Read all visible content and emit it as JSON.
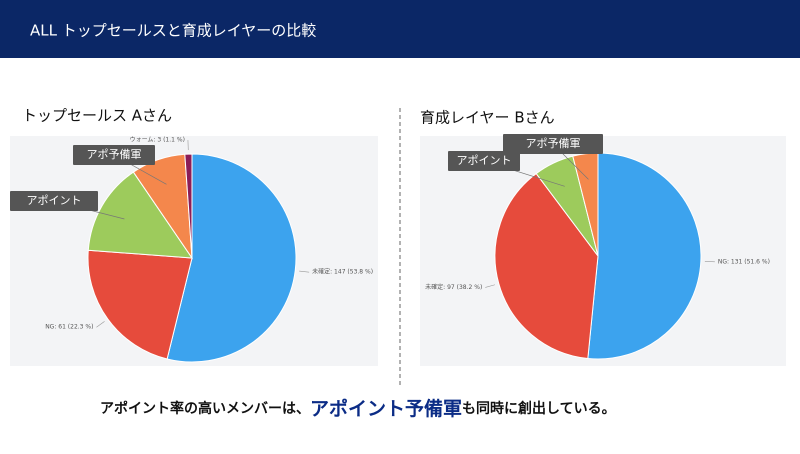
{
  "header": {
    "title": "ALL トップセールスと育成レイヤーの比較"
  },
  "chart_data": [
    {
      "type": "pie",
      "title": "トップセールス Aさん",
      "categories": [
        "未確定",
        "NG",
        "アポイント",
        "アポ予備軍",
        "ウォーム"
      ],
      "values": [
        147,
        61,
        39,
        23,
        3
      ],
      "value_labels": [
        "未確定: 147 (53.8 %)",
        "NG: 61 (22.3 %)",
        null,
        null,
        "ウォーム: 3 (1.1 %)"
      ],
      "colors": [
        "#3ca3ee",
        "#e64b3c",
        "#9dcb5c",
        "#f4874c",
        "#8b1d57"
      ]
    },
    {
      "type": "pie",
      "title": "育成レイヤー Bさん",
      "categories": [
        "NG",
        "未確定",
        "アポイント",
        "アポ予備軍"
      ],
      "values": [
        131,
        97,
        16,
        10
      ],
      "value_labels": [
        "NG: 131 (51.6 %)",
        "未確定: 97 (38.2 %)",
        null,
        null
      ],
      "colors": [
        "#3ca3ee",
        "#e64b3c",
        "#9dcb5c",
        "#f4874c"
      ]
    }
  ],
  "footer": {
    "parts": [
      "アポイント率の高いメンバーは、",
      "アポイント予備軍",
      "も同時に創出している。"
    ]
  }
}
